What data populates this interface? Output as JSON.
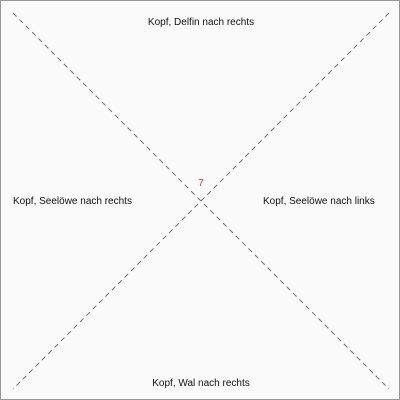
{
  "labels": {
    "top": "Kopf, Delfin nach rechts",
    "bottom": "Kopf, Wal nach rechts",
    "left": "Kopf, Seelöwe nach rechts",
    "right": "Kopf, Seelöwe nach links"
  },
  "center": {
    "value": "7",
    "color": "#d03030"
  },
  "colors": {
    "background": "#fafafa",
    "border": "#9a9a9a",
    "diagonal_line": "#555555",
    "text": "#111111"
  }
}
